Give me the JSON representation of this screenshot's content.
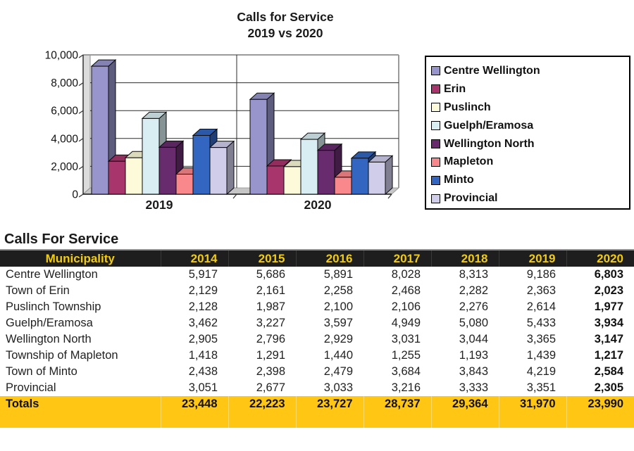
{
  "chart_data": {
    "type": "bar",
    "title": "Calls for Service",
    "subtitle": "2019 vs 2020",
    "categories": [
      "2019",
      "2020"
    ],
    "series": [
      {
        "name": "Centre Wellington",
        "color": "#9795CB",
        "values": [
          9186,
          6803
        ]
      },
      {
        "name": "Erin",
        "color": "#A8356C",
        "values": [
          2363,
          2023
        ]
      },
      {
        "name": "Puslinch",
        "color": "#FCFAD9",
        "values": [
          2614,
          1977
        ]
      },
      {
        "name": "Guelph/Eramosa",
        "color": "#D9EEF2",
        "values": [
          5433,
          3934
        ]
      },
      {
        "name": "Wellington North",
        "color": "#682C6E",
        "values": [
          3365,
          3147
        ]
      },
      {
        "name": "Mapleton",
        "color": "#F8888C",
        "values": [
          1439,
          1217
        ]
      },
      {
        "name": "Minto",
        "color": "#3366C0",
        "values": [
          4219,
          2584
        ]
      },
      {
        "name": "Provincial",
        "color": "#CFCDEA",
        "values": [
          3351,
          2305
        ]
      }
    ],
    "ylim": [
      0,
      10000
    ],
    "yticks": [
      {
        "value": 0,
        "label": "0"
      },
      {
        "value": 2000,
        "label": "2,000"
      },
      {
        "value": 4000,
        "label": "4,000"
      },
      {
        "value": 6000,
        "label": "6,000"
      },
      {
        "value": 8000,
        "label": "8,000"
      },
      {
        "value": 10000,
        "label": "10,000"
      }
    ],
    "grid": true,
    "legend_position": "right"
  },
  "table": {
    "section_title": "Calls For Service",
    "columns": [
      "Municipality",
      "2014",
      "2015",
      "2016",
      "2017",
      "2018",
      "2019",
      "2020"
    ],
    "rows": [
      {
        "name": "Centre Wellington",
        "values": [
          "5,917",
          "5,686",
          "5,891",
          "8,028",
          "8,313",
          "9,186",
          "6,803"
        ]
      },
      {
        "name": "Town of Erin",
        "values": [
          "2,129",
          "2,161",
          "2,258",
          "2,468",
          "2,282",
          "2,363",
          "2,023"
        ]
      },
      {
        "name": "Puslinch Township",
        "values": [
          "2,128",
          "1,987",
          "2,100",
          "2,106",
          "2,276",
          "2,614",
          "1,977"
        ]
      },
      {
        "name": "Guelph/Eramosa",
        "values": [
          "3,462",
          "3,227",
          "3,597",
          "4,949",
          "5,080",
          "5,433",
          "3,934"
        ]
      },
      {
        "name": "Wellington North",
        "values": [
          "2,905",
          "2,796",
          "2,929",
          "3,031",
          "3,044",
          "3,365",
          "3,147"
        ]
      },
      {
        "name": "Township of Mapleton",
        "values": [
          "1,418",
          "1,291",
          "1,440",
          "1,255",
          "1,193",
          "1,439",
          "1,217"
        ]
      },
      {
        "name": "Town of Minto",
        "values": [
          "2,438",
          "2,398",
          "2,479",
          "3,684",
          "3,843",
          "4,219",
          "2,584"
        ]
      },
      {
        "name": "Provincial",
        "values": [
          "3,051",
          "2,677",
          "3,033",
          "3,216",
          "3,333",
          "3,351",
          "2,305"
        ]
      }
    ],
    "totals": {
      "label": "Totals",
      "values": [
        "23,448",
        "22,223",
        "23,727",
        "28,737",
        "29,364",
        "31,970",
        "23,990"
      ]
    }
  },
  "colors": {
    "header_bg": "#1E1E1E",
    "header_text": "#F2CC0D",
    "totals_bg": "#FFC714",
    "wall_gray": "#DCDCDC",
    "floor_gray": "#C6C6C6"
  }
}
